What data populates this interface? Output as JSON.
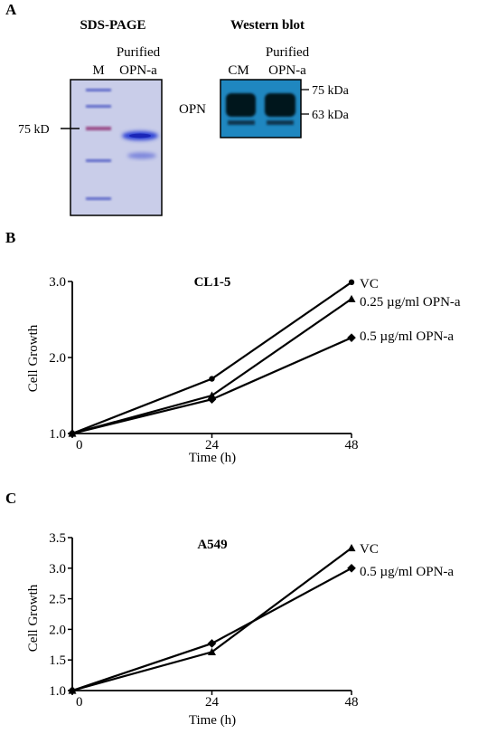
{
  "panel_a": {
    "letter": "A",
    "sds": {
      "title": "SDS-PAGE",
      "lane_m": "M",
      "lane_purified_line1": "Purified",
      "lane_purified_line2": "OPN-a",
      "marker_label": "75 kD"
    },
    "western": {
      "title": "Western blot",
      "lane_cm": "CM",
      "lane_purified_line1": "Purified",
      "lane_purified_line2": "OPN-a",
      "row_label": "OPN",
      "mw_upper": "75 kDa",
      "mw_lower": "63 kDa"
    },
    "colors": {
      "gel_background": "#c9cde9",
      "marker_band": "#5b66c8",
      "marker_band_75": "#9a4a86",
      "sample_band": "#2c3fd6",
      "blot_background": "#1f87c0",
      "blot_band": "#05121c"
    }
  },
  "chart_data": [
    {
      "letter": "B",
      "type": "line",
      "title": "CL1-5",
      "xlabel": "Time (h)",
      "ylabel": "Cell Growth",
      "x": [
        0,
        24,
        48
      ],
      "xticks": [
        "0",
        "24",
        "48"
      ],
      "yticks": [
        "1.0",
        "2.0",
        "3.0"
      ],
      "ylim": [
        1.0,
        3.0
      ],
      "xlim": [
        0,
        48
      ],
      "grid": false,
      "series": [
        {
          "name": "VC",
          "values": [
            1.0,
            1.72,
            2.99
          ],
          "marker": "circle"
        },
        {
          "name": "0.25 µg/ml OPN-a",
          "values": [
            1.0,
            1.5,
            2.77
          ],
          "marker": "triangle"
        },
        {
          "name": "0.5 µg/ml OPN-a",
          "values": [
            1.0,
            1.45,
            2.26
          ],
          "marker": "diamond"
        }
      ]
    },
    {
      "letter": "C",
      "type": "line",
      "title": "A549",
      "xlabel": "Time (h)",
      "ylabel": "Cell Growth",
      "x": [
        0,
        24,
        48
      ],
      "xticks": [
        "0",
        "24",
        "48"
      ],
      "yticks": [
        "1.0",
        "1.5",
        "2.0",
        "2.5",
        "3.0",
        "3.5"
      ],
      "ylim": [
        1.0,
        3.5
      ],
      "xlim": [
        0,
        48
      ],
      "grid": false,
      "series": [
        {
          "name": "VC",
          "values": [
            1.0,
            1.63,
            3.33
          ],
          "marker": "triangle"
        },
        {
          "name": "0.5 µg/ml OPN-a",
          "values": [
            1.0,
            1.77,
            3.0
          ],
          "marker": "diamond"
        }
      ]
    }
  ]
}
